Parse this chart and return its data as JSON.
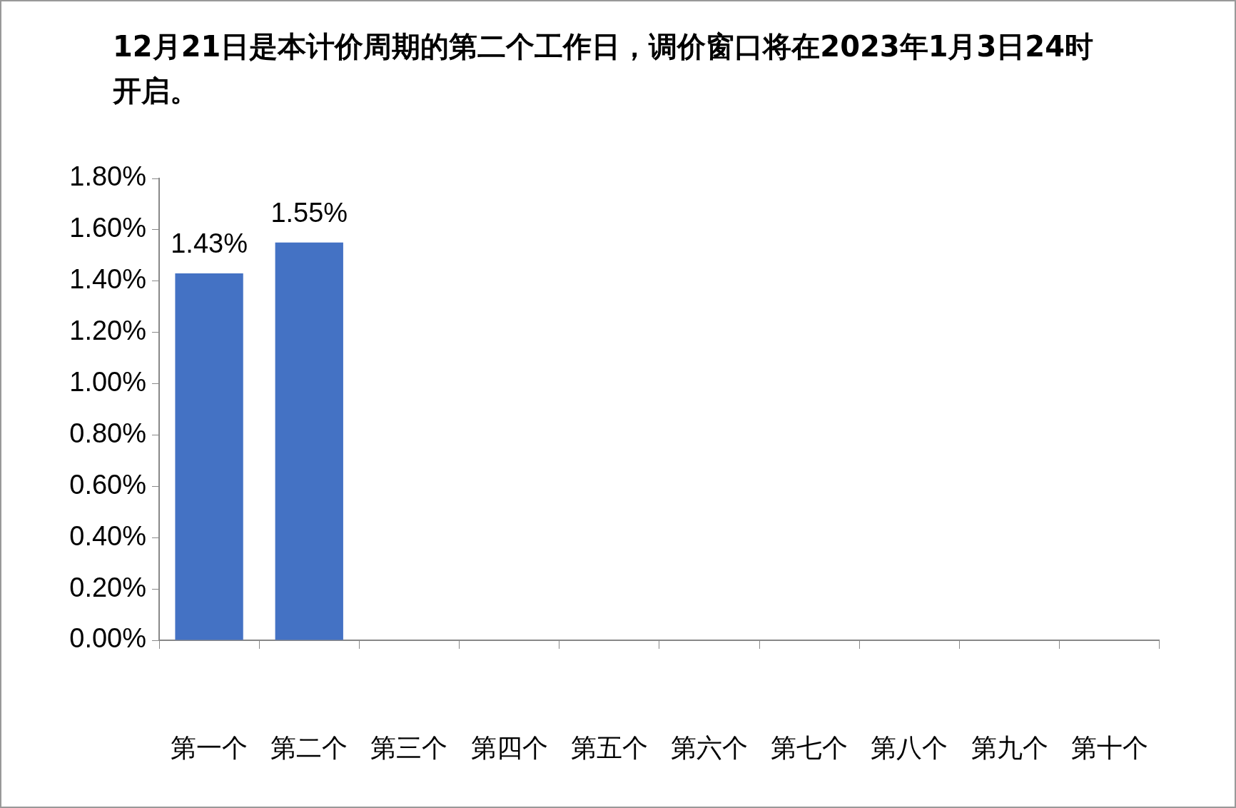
{
  "chart_data": {
    "type": "bar",
    "title": "12月21日是本计价周期的第二个工作日，调价窗口将在2023年1月3日24时开启。",
    "categories": [
      "第一个",
      "第二个",
      "第三个",
      "第四个",
      "第五个",
      "第六个",
      "第七个",
      "第八个",
      "第九个",
      "第十个"
    ],
    "values": [
      1.43,
      1.55,
      null,
      null,
      null,
      null,
      null,
      null,
      null,
      null
    ],
    "value_labels": [
      "1.43%",
      "1.55%",
      null,
      null,
      null,
      null,
      null,
      null,
      null,
      null
    ],
    "color": "#4472c4",
    "ylim": [
      0,
      1.8
    ],
    "yticks": [
      {
        "value": 0,
        "label": "0.00%"
      },
      {
        "value": 0.2,
        "label": "0.20%"
      },
      {
        "value": 0.4,
        "label": "0.40%"
      },
      {
        "value": 0.6,
        "label": "0.60%"
      },
      {
        "value": 0.8,
        "label": "0.80%"
      },
      {
        "value": 1.0,
        "label": "1.00%"
      },
      {
        "value": 1.2,
        "label": "1.20%"
      },
      {
        "value": 1.4,
        "label": "1.40%"
      },
      {
        "value": 1.6,
        "label": "1.60%"
      },
      {
        "value": 1.8,
        "label": "1.80%"
      }
    ]
  }
}
